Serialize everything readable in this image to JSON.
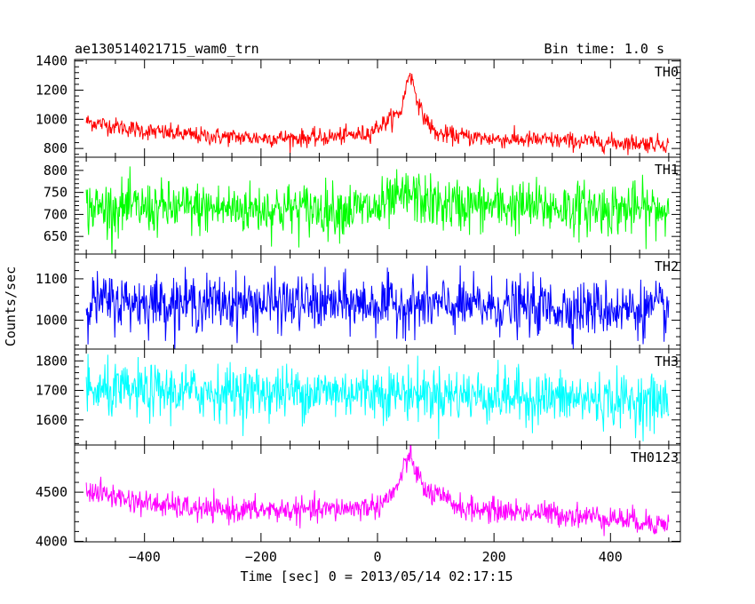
{
  "title_left": "ae130514021715_wam0_trn",
  "title_right": "Bin time: 1.0 s",
  "ylabel": "Counts/sec",
  "xlabel": "Time [sec] 0 = 2013/05/14 02:17:15",
  "chart_data": [
    {
      "type": "line",
      "name": "TH0",
      "color": "#ff0000",
      "x_range": [
        -500,
        500
      ],
      "xlim": [
        -520,
        520
      ],
      "ylim": [
        740,
        1410
      ],
      "yticks": [
        800,
        1000,
        1200,
        1400
      ],
      "baseline": [
        [
          -500,
          985
        ],
        [
          -400,
          920
        ],
        [
          -300,
          885
        ],
        [
          -200,
          872
        ],
        [
          -100,
          872
        ],
        [
          -20,
          900
        ],
        [
          10,
          970
        ],
        [
          40,
          1050
        ],
        [
          55,
          1330
        ],
        [
          75,
          1050
        ],
        [
          100,
          900
        ],
        [
          200,
          865
        ],
        [
          300,
          855
        ],
        [
          400,
          842
        ],
        [
          500,
          832
        ]
      ],
      "noise_std": 30
    },
    {
      "type": "line",
      "name": "TH1",
      "color": "#00ff00",
      "x_range": [
        -500,
        500
      ],
      "xlim": [
        -520,
        520
      ],
      "ylim": [
        610,
        830
      ],
      "yticks": [
        650,
        700,
        750,
        800
      ],
      "baseline": [
        [
          -500,
          715
        ],
        [
          -100,
          712
        ],
        [
          0,
          712
        ],
        [
          55,
          745
        ],
        [
          100,
          722
        ],
        [
          500,
          710
        ]
      ],
      "noise_std": 30
    },
    {
      "type": "line",
      "name": "TH2",
      "color": "#0000ff",
      "x_range": [
        -500,
        500
      ],
      "xlim": [
        -520,
        520
      ],
      "ylim": [
        930,
        1160
      ],
      "yticks": [
        1000,
        1100
      ],
      "baseline": [
        [
          -500,
          1045
        ],
        [
          0,
          1038
        ],
        [
          500,
          1025
        ]
      ],
      "noise_std": 33
    },
    {
      "type": "line",
      "name": "TH3",
      "color": "#00ffff",
      "x_range": [
        -500,
        500
      ],
      "xlim": [
        -520,
        520
      ],
      "ylim": [
        1515,
        1840
      ],
      "yticks": [
        1600,
        1700,
        1800
      ],
      "baseline": [
        [
          -500,
          1695
        ],
        [
          0,
          1695
        ],
        [
          500,
          1660
        ]
      ],
      "noise_std": 45
    },
    {
      "type": "line",
      "name": "TH0123",
      "color": "#ff00ff",
      "x_range": [
        -500,
        500
      ],
      "xlim": [
        -520,
        520
      ],
      "ylim": [
        3995,
        4980
      ],
      "yticks": [
        4000,
        4500
      ],
      "baseline": [
        [
          -500,
          4520
        ],
        [
          -400,
          4390
        ],
        [
          -300,
          4320
        ],
        [
          -100,
          4315
        ],
        [
          0,
          4360
        ],
        [
          30,
          4500
        ],
        [
          55,
          4880
        ],
        [
          80,
          4520
        ],
        [
          150,
          4330
        ],
        [
          300,
          4280
        ],
        [
          400,
          4240
        ],
        [
          500,
          4170
        ]
      ],
      "noise_std": 62
    }
  ],
  "xticks": [
    -400,
    -200,
    0,
    200,
    400
  ]
}
